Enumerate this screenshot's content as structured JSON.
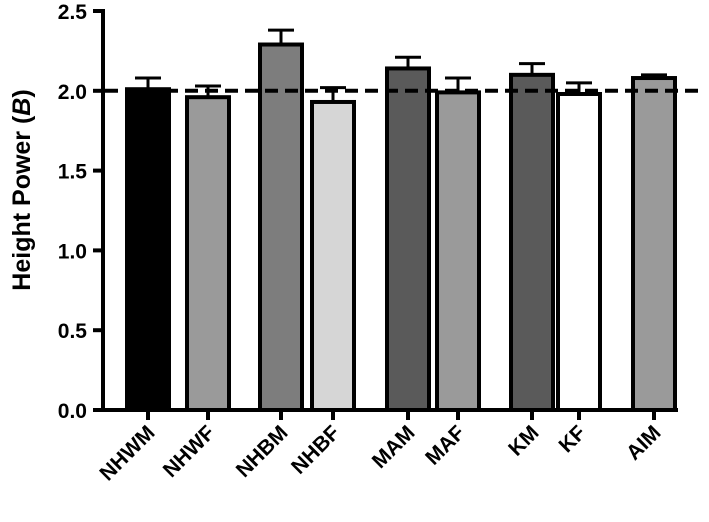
{
  "chart_data": {
    "type": "bar",
    "title": "",
    "xlabel": "",
    "ylabel": "Height Power (",
    "ylabel_var": "B",
    "ylabel_close": ")",
    "ylim": [
      0,
      2.5
    ],
    "yticks": [
      "0.0",
      "0.5",
      "1.0",
      "1.5",
      "2.0",
      "2.5"
    ],
    "ytick_values": [
      0,
      0.5,
      1.0,
      1.5,
      2.0,
      2.5
    ],
    "reference_line": 2.0,
    "grid": false,
    "categories": [
      "NHWM",
      "NHWF",
      "NHBM",
      "NHBF",
      "MAM",
      "MAF",
      "KM",
      "KF",
      "AIM"
    ],
    "values": [
      2.01,
      1.96,
      2.29,
      1.93,
      2.14,
      1.99,
      2.1,
      1.98,
      2.08
    ],
    "errors": [
      0.07,
      0.07,
      0.09,
      0.09,
      0.07,
      0.09,
      0.07,
      0.07,
      0.02
    ],
    "bar_colors": [
      "#000000",
      "#9a9a9a",
      "#7d7d7d",
      "#d6d6d6",
      "#5a5a5a",
      "#9a9a9a",
      "#5a5a5a",
      "#ffffff",
      "#9a9a9a"
    ]
  }
}
